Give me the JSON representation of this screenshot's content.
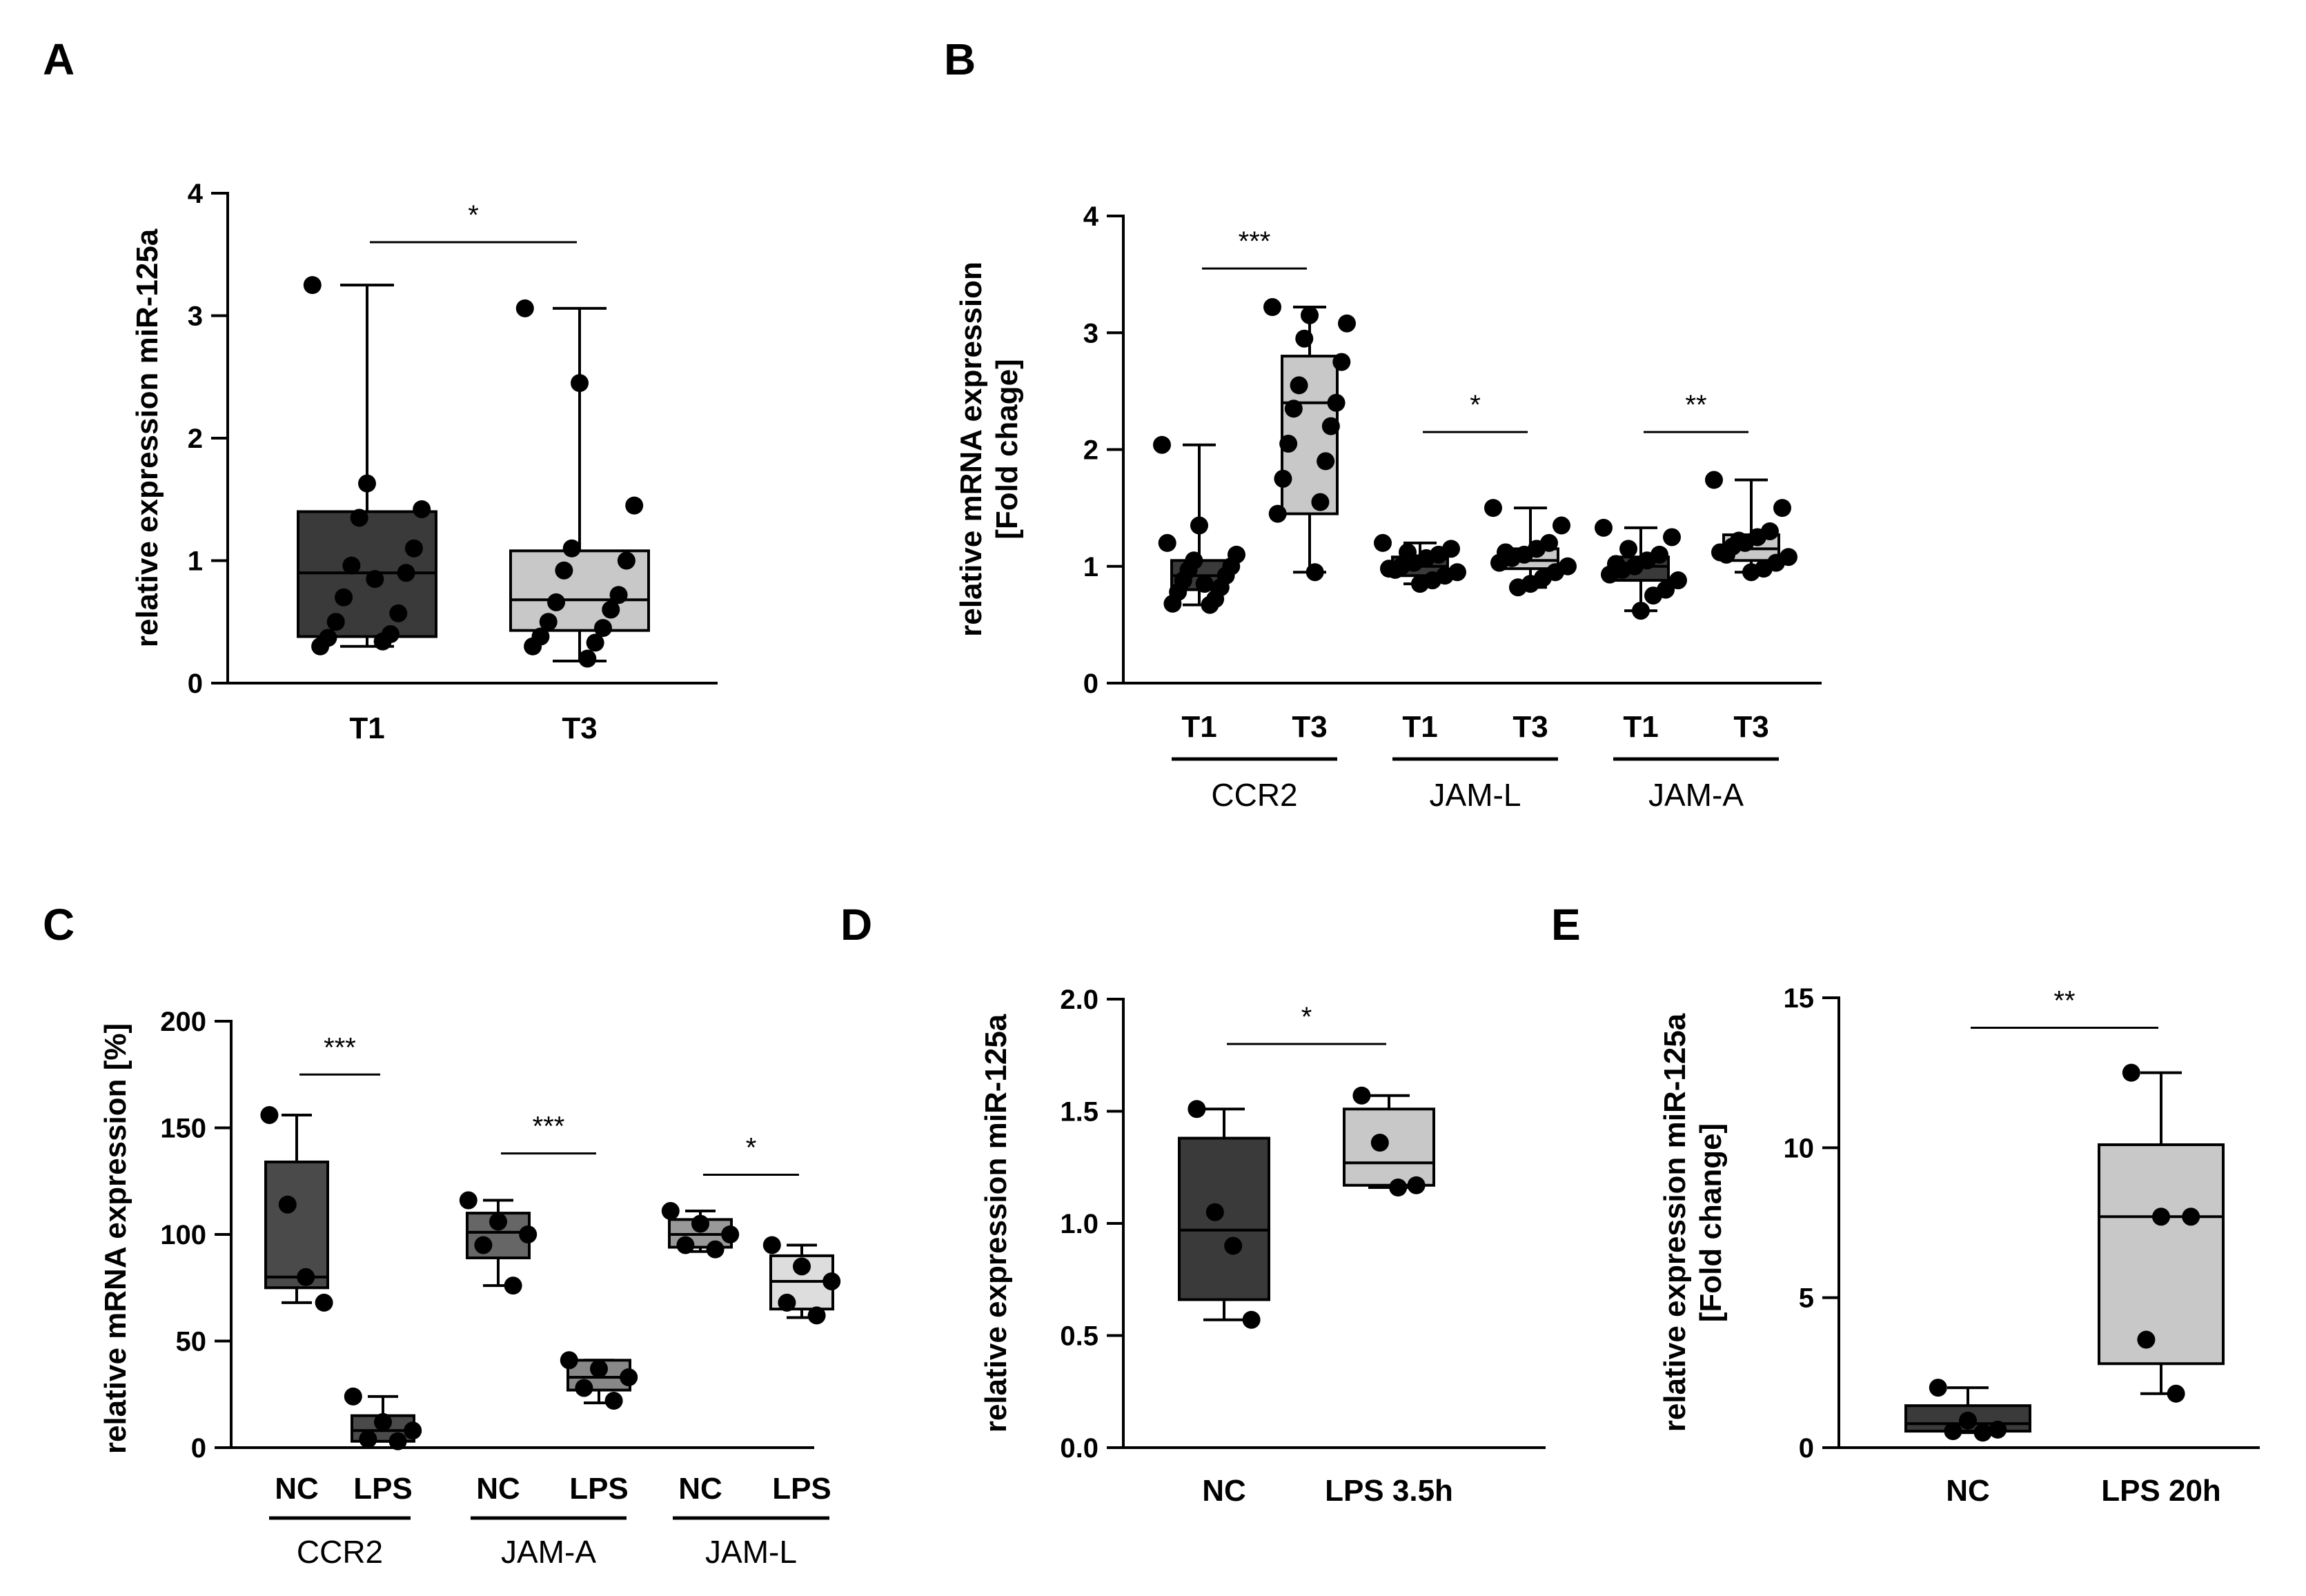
{
  "figure": {
    "panels": [
      "A",
      "B",
      "C",
      "D",
      "E"
    ]
  },
  "chart_data": [
    {
      "panel": "A",
      "type": "box",
      "ylabel": [
        "relative expression miR-125a"
      ],
      "ylim": [
        0,
        4
      ],
      "yticks": [
        "0",
        "1",
        "2",
        "3",
        "4"
      ],
      "categories": [
        "T1",
        "T3"
      ],
      "boxes": [
        {
          "category": "T1",
          "min": 0.3,
          "q1": 0.38,
          "median": 0.9,
          "q3": 1.4,
          "max": 3.25,
          "fill": "#3a3a3a",
          "points": [
            3.25,
            1.63,
            1.42,
            1.35,
            1.1,
            0.96,
            0.9,
            0.7,
            0.57,
            0.5,
            0.4,
            0.37,
            0.34,
            0.3,
            0.85
          ]
        },
        {
          "category": "T3",
          "min": 0.18,
          "q1": 0.43,
          "median": 0.68,
          "q3": 1.08,
          "max": 3.06,
          "fill": "#c8c8c8",
          "points": [
            3.06,
            2.45,
            1.45,
            1.1,
            1.0,
            0.92,
            0.72,
            0.66,
            0.6,
            0.5,
            0.45,
            0.38,
            0.33,
            0.3,
            0.2
          ]
        }
      ],
      "significance": [
        {
          "from": 0,
          "to": 1,
          "label": "*",
          "y": 3.6
        }
      ]
    },
    {
      "panel": "B",
      "type": "box",
      "ylabel": [
        "relative mRNA expression",
        "[Fold chage]"
      ],
      "ylim": [
        0,
        4
      ],
      "yticks": [
        "0",
        "1",
        "2",
        "3",
        "4"
      ],
      "categories": [
        "T1",
        "T3",
        "T1",
        "T3",
        "T1",
        "T3"
      ],
      "groups": [
        {
          "label": "CCR2",
          "span": [
            0,
            1
          ]
        },
        {
          "label": "JAM-L",
          "span": [
            2,
            3
          ]
        },
        {
          "label": "JAM-A",
          "span": [
            4,
            5
          ]
        }
      ],
      "boxes": [
        {
          "category": "T1",
          "min": 0.67,
          "q1": 0.8,
          "median": 0.92,
          "q3": 1.05,
          "max": 2.04,
          "fill": "#3a3a3a",
          "points": [
            2.04,
            1.35,
            1.1,
            1.05,
            1.0,
            0.97,
            0.92,
            0.88,
            0.82,
            0.78,
            0.72,
            0.68,
            0.67,
            1.2,
            0.85
          ]
        },
        {
          "category": "T3",
          "min": 0.95,
          "q1": 1.45,
          "median": 2.4,
          "q3": 2.8,
          "max": 3.22,
          "fill": "#c8c8c8",
          "points": [
            3.22,
            3.15,
            3.08,
            2.95,
            2.75,
            2.55,
            2.4,
            2.35,
            2.2,
            2.05,
            1.9,
            1.75,
            1.55,
            1.45,
            0.95
          ]
        },
        {
          "category": "T1",
          "min": 0.85,
          "q1": 0.92,
          "median": 1.0,
          "q3": 1.08,
          "max": 1.2,
          "fill": "#3a3a3a",
          "points": [
            1.2,
            1.15,
            1.1,
            1.07,
            1.03,
            1.0,
            0.98,
            0.95,
            0.92,
            0.88,
            0.85,
            1.12,
            0.97
          ]
        },
        {
          "category": "T3",
          "min": 0.82,
          "q1": 0.98,
          "median": 1.05,
          "q3": 1.15,
          "max": 1.5,
          "fill": "#c8c8c8",
          "points": [
            1.5,
            1.35,
            1.2,
            1.15,
            1.1,
            1.07,
            1.03,
            1.0,
            0.95,
            0.9,
            0.85,
            0.82,
            1.12
          ]
        },
        {
          "category": "T1",
          "min": 0.62,
          "q1": 0.88,
          "median": 1.0,
          "q3": 1.08,
          "max": 1.33,
          "fill": "#3a3a3a",
          "points": [
            1.33,
            1.25,
            1.1,
            1.05,
            1.0,
            0.97,
            0.93,
            0.88,
            0.8,
            0.75,
            0.62,
            1.15,
            1.02
          ]
        },
        {
          "category": "T3",
          "min": 0.95,
          "q1": 1.05,
          "median": 1.15,
          "q3": 1.27,
          "max": 1.74,
          "fill": "#c8c8c8",
          "points": [
            1.74,
            1.5,
            1.3,
            1.25,
            1.2,
            1.17,
            1.12,
            1.08,
            1.03,
            0.98,
            0.95,
            1.22,
            1.1
          ]
        }
      ],
      "significance": [
        {
          "from": 0,
          "to": 1,
          "label": "***",
          "y": 3.55
        },
        {
          "from": 2,
          "to": 3,
          "label": "*",
          "y": 2.15
        },
        {
          "from": 4,
          "to": 5,
          "label": "**",
          "y": 2.15
        }
      ]
    },
    {
      "panel": "C",
      "type": "box",
      "ylabel": [
        "relative mRNA expression [%]"
      ],
      "ylim": [
        0,
        200
      ],
      "yticks": [
        "0",
        "50",
        "100",
        "150",
        "200"
      ],
      "categories": [
        "NC",
        "LPS",
        "NC",
        "LPS",
        "NC",
        "LPS"
      ],
      "groups": [
        {
          "label": "CCR2",
          "span": [
            0,
            1
          ]
        },
        {
          "label": "JAM-A",
          "span": [
            2,
            3
          ]
        },
        {
          "label": "JAM-L",
          "span": [
            4,
            5
          ]
        }
      ],
      "boxes": [
        {
          "category": "NC",
          "min": 68,
          "q1": 75,
          "median": 80,
          "q3": 134,
          "max": 156,
          "fill": "#4a4a4a",
          "points": [
            156,
            114,
            80,
            68
          ]
        },
        {
          "category": "LPS",
          "min": 3,
          "q1": 3,
          "median": 8,
          "q3": 15,
          "max": 24,
          "fill": "#4a4a4a",
          "points": [
            24,
            12,
            8,
            4,
            3
          ]
        },
        {
          "category": "NC",
          "min": 76,
          "q1": 89,
          "median": 101,
          "q3": 110,
          "max": 116,
          "fill": "#666666",
          "points": [
            116,
            106,
            100,
            95,
            76
          ]
        },
        {
          "category": "LPS",
          "min": 21,
          "q1": 27,
          "median": 33,
          "q3": 41,
          "max": 41,
          "fill": "#888888",
          "points": [
            41,
            37,
            33,
            28,
            22
          ]
        },
        {
          "category": "NC",
          "min": 92,
          "q1": 94,
          "median": 100,
          "q3": 107,
          "max": 111,
          "fill": "#999999",
          "points": [
            111,
            105,
            100,
            95,
            93
          ]
        },
        {
          "category": "LPS",
          "min": 61,
          "q1": 65,
          "median": 78,
          "q3": 90,
          "max": 95,
          "fill": "#dddddd",
          "points": [
            95,
            85,
            78,
            68,
            62
          ]
        }
      ],
      "significance": [
        {
          "from": 0,
          "to": 1,
          "label": "***",
          "y": 175
        },
        {
          "from": 2,
          "to": 3,
          "label": "***",
          "y": 138
        },
        {
          "from": 4,
          "to": 5,
          "label": "*",
          "y": 128
        }
      ]
    },
    {
      "panel": "D",
      "type": "box",
      "ylabel": [
        "relative expression miR-125a"
      ],
      "ylim": [
        0,
        2.0
      ],
      "yticks": [
        "0.0",
        "0.5",
        "1.0",
        "1.5",
        "2.0"
      ],
      "categories": [
        "NC",
        "LPS 3.5h"
      ],
      "boxes": [
        {
          "category": "NC",
          "min": 0.57,
          "q1": 0.66,
          "median": 0.97,
          "q3": 1.38,
          "max": 1.51,
          "fill": "#3a3a3a",
          "points": [
            1.51,
            1.05,
            0.9,
            0.57
          ]
        },
        {
          "category": "LPS 3.5h",
          "min": 1.16,
          "q1": 1.17,
          "median": 1.27,
          "q3": 1.51,
          "max": 1.57,
          "fill": "#c8c8c8",
          "points": [
            1.57,
            1.36,
            1.16,
            1.17
          ]
        }
      ],
      "significance": [
        {
          "from": 0,
          "to": 1,
          "label": "*",
          "y": 1.8
        }
      ]
    },
    {
      "panel": "E",
      "type": "box",
      "ylabel": [
        "relative expression miR-125a",
        "[Fold change]"
      ],
      "ylim": [
        0,
        15
      ],
      "yticks": [
        "0",
        "5",
        "10",
        "15"
      ],
      "categories": [
        "NC",
        "LPS 20h"
      ],
      "boxes": [
        {
          "category": "NC",
          "min": 0.5,
          "q1": 0.55,
          "median": 0.8,
          "q3": 1.4,
          "max": 2.0,
          "fill": "#3a3a3a",
          "points": [
            2.0,
            0.9,
            0.6,
            0.55,
            0.5
          ]
        },
        {
          "category": "LPS 20h",
          "min": 1.8,
          "q1": 2.8,
          "median": 7.7,
          "q3": 10.1,
          "max": 12.5,
          "fill": "#c8c8c8",
          "points": [
            12.5,
            7.7,
            7.7,
            3.6,
            1.8
          ]
        }
      ],
      "significance": [
        {
          "from": 0,
          "to": 1,
          "label": "**",
          "y": 14.0
        }
      ]
    }
  ]
}
